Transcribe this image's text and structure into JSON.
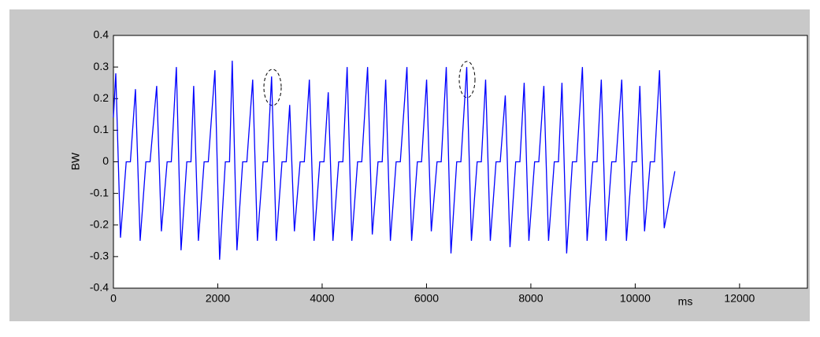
{
  "chart_data": {
    "type": "line",
    "x_label": "ms",
    "y_label": "BW",
    "xlim": [
      0,
      13300
    ],
    "ylim": [
      -0.4,
      0.4
    ],
    "xticks": [
      0,
      2000,
      4000,
      6000,
      8000,
      10000,
      12000
    ],
    "yticks": [
      -0.4,
      -0.3,
      -0.2,
      -0.1,
      0,
      0.1,
      0.2,
      0.3,
      0.4
    ],
    "grid": false,
    "x": [
      0,
      45,
      135,
      245,
      325,
      422,
      512,
      622,
      702,
      829,
      919,
      1029,
      1109,
      1206,
      1296,
      1406,
      1486,
      1538,
      1628,
      1738,
      1818,
      1945,
      2035,
      2145,
      2225,
      2277,
      2367,
      2477,
      2557,
      2669,
      2759,
      2869,
      2949,
      3031,
      3121,
      3231,
      3311,
      3378,
      3468,
      3578,
      3658,
      3755,
      3845,
      3955,
      4035,
      4117,
      4207,
      4317,
      4397,
      4479,
      4569,
      4679,
      4759,
      4871,
      4961,
      5071,
      5151,
      5218,
      5308,
      5418,
      5498,
      5625,
      5715,
      5825,
      5905,
      6002,
      6092,
      6202,
      6282,
      6379,
      6469,
      6579,
      6659,
      6771,
      6861,
      6971,
      7051,
      7133,
      7223,
      7333,
      7413,
      7510,
      7600,
      7710,
      7790,
      7872,
      7962,
      8072,
      8152,
      8249,
      8339,
      8449,
      8529,
      8596,
      8686,
      8796,
      8876,
      8988,
      9078,
      9188,
      9268,
      9350,
      9440,
      9550,
      9630,
      9742,
      9832,
      9942,
      10022,
      10089,
      10179,
      10289,
      10369,
      10466,
      10556,
      10760
    ],
    "series": [
      {
        "color": "#0000ff",
        "values": [
          0.14,
          0.28,
          -0.24,
          0,
          0,
          0.23,
          -0.25,
          0,
          0,
          0.24,
          -0.22,
          0,
          0,
          0.3,
          -0.28,
          0,
          0,
          0.24,
          -0.25,
          0,
          0,
          0.29,
          -0.31,
          0,
          0,
          0.32,
          -0.28,
          0,
          0,
          0.26,
          -0.25,
          0,
          0,
          0.27,
          -0.25,
          0,
          0,
          0.18,
          -0.22,
          0,
          0,
          0.26,
          -0.25,
          0,
          0,
          0.22,
          -0.25,
          0,
          0,
          0.3,
          -0.25,
          0,
          0,
          0.3,
          -0.23,
          0,
          0,
          0.26,
          -0.25,
          0,
          0,
          0.3,
          -0.25,
          0,
          0,
          0.26,
          -0.22,
          0,
          0,
          0.3,
          -0.29,
          0,
          0,
          0.3,
          -0.25,
          0,
          0,
          0.26,
          -0.25,
          0,
          0,
          0.21,
          -0.27,
          0,
          0,
          0.25,
          -0.25,
          0,
          0,
          0.24,
          -0.25,
          0,
          0,
          0.25,
          -0.29,
          0,
          0,
          0.3,
          -0.25,
          0,
          0,
          0.26,
          -0.25,
          0,
          0,
          0.26,
          -0.25,
          0,
          0,
          0.24,
          -0.22,
          0,
          0,
          0.29,
          -0.21,
          -0.03
        ]
      }
    ]
  }
}
